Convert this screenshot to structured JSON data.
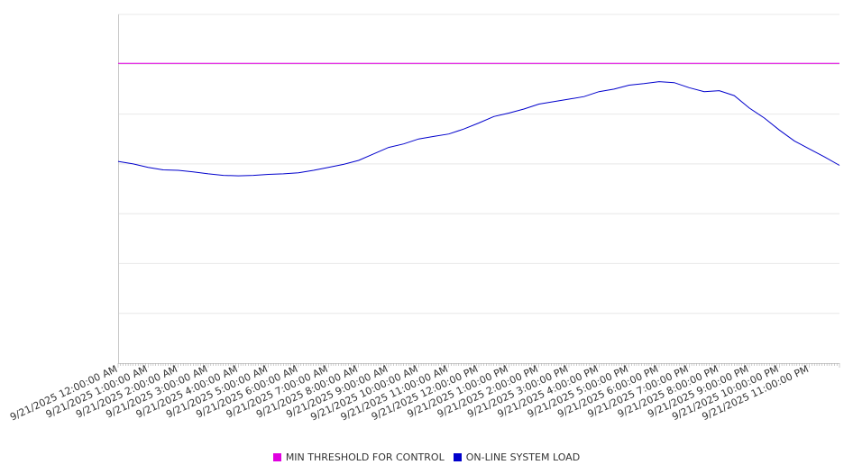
{
  "chart_data": {
    "type": "line",
    "title": "",
    "xlabel": "",
    "ylabel": "",
    "grid": true,
    "legend_position": "bottom",
    "x_tick_labels": [
      "9/21/2025 12:00:00 AM",
      "9/21/2025 1:00:00 AM",
      "9/21/2025 2:00:00 AM",
      "9/21/2025 3:00:00 AM",
      "9/21/2025 4:00:00 AM",
      "9/21/2025 5:00:00 AM",
      "9/21/2025 6:00:00 AM",
      "9/21/2025 7:00:00 AM",
      "9/21/2025 8:00:00 AM",
      "9/21/2025 9:00:00 AM",
      "9/21/2025 10:00:00 AM",
      "9/21/2025 11:00:00 AM",
      "9/21/2025 12:00:00 PM",
      "9/21/2025 1:00:00 PM",
      "9/21/2025 2:00:00 PM",
      "9/21/2025 3:00:00 PM",
      "9/21/2025 4:00:00 PM",
      "9/21/2025 5:00:00 PM",
      "9/21/2025 6:00:00 PM",
      "9/21/2025 7:00:00 PM",
      "9/21/2025 8:00:00 PM",
      "9/21/2025 9:00:00 PM",
      "9/21/2025 10:00:00 PM",
      "9/21/2025 11:00:00 PM"
    ],
    "x_range": [
      0,
      24
    ],
    "ylim": [
      0,
      7
    ],
    "series": [
      {
        "name": "MIN THRESHOLD FOR CONTROL",
        "color": "#e000e0",
        "points": [
          [
            0,
            6.02
          ],
          [
            24,
            6.02
          ]
        ]
      },
      {
        "name": "ON-LINE SYSTEM LOAD",
        "color": "#0000cc",
        "points": [
          [
            0,
            4.05
          ],
          [
            0.5,
            4.0
          ],
          [
            1,
            3.93
          ],
          [
            1.5,
            3.88
          ],
          [
            2,
            3.87
          ],
          [
            2.5,
            3.84
          ],
          [
            3,
            3.8
          ],
          [
            3.5,
            3.77
          ],
          [
            4,
            3.76
          ],
          [
            4.5,
            3.77
          ],
          [
            5,
            3.79
          ],
          [
            5.5,
            3.8
          ],
          [
            6,
            3.82
          ],
          [
            6.5,
            3.87
          ],
          [
            7,
            3.93
          ],
          [
            7.5,
            3.99
          ],
          [
            8,
            4.07
          ],
          [
            8.5,
            4.2
          ],
          [
            9,
            4.33
          ],
          [
            9.5,
            4.4
          ],
          [
            10,
            4.5
          ],
          [
            10.5,
            4.55
          ],
          [
            11,
            4.6
          ],
          [
            11.5,
            4.7
          ],
          [
            12,
            4.82
          ],
          [
            12.5,
            4.95
          ],
          [
            13,
            5.02
          ],
          [
            13.5,
            5.1
          ],
          [
            14,
            5.2
          ],
          [
            14.5,
            5.25
          ],
          [
            15,
            5.3
          ],
          [
            15.5,
            5.35
          ],
          [
            16,
            5.45
          ],
          [
            16.5,
            5.5
          ],
          [
            17,
            5.58
          ],
          [
            17.5,
            5.61
          ],
          [
            18,
            5.65
          ],
          [
            18.5,
            5.63
          ],
          [
            19,
            5.53
          ],
          [
            19.5,
            5.45
          ],
          [
            20,
            5.47
          ],
          [
            20.5,
            5.37
          ],
          [
            21,
            5.12
          ],
          [
            21.5,
            4.92
          ],
          [
            22,
            4.68
          ],
          [
            22.5,
            4.46
          ],
          [
            23,
            4.3
          ],
          [
            23.5,
            4.14
          ],
          [
            24,
            3.97
          ]
        ]
      }
    ]
  }
}
